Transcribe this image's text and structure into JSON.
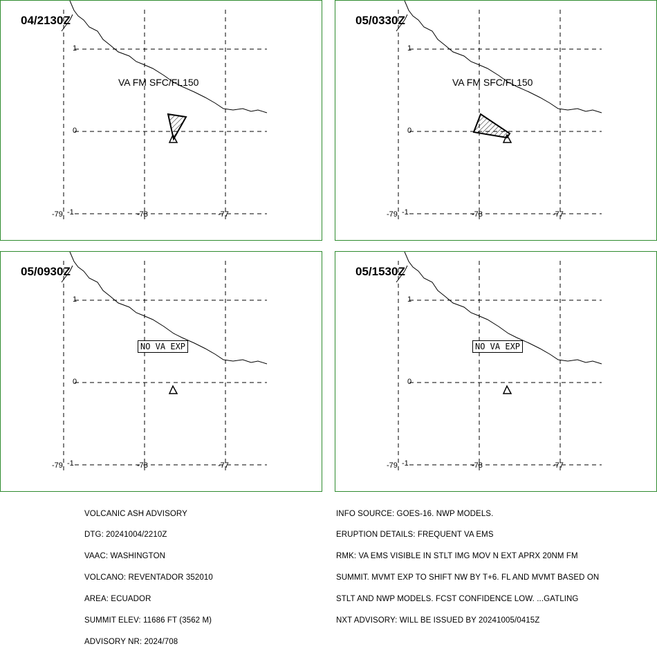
{
  "panels": [
    {
      "time": "04/2130Z",
      "label": "VA FM SFC/FL150",
      "no_va": ""
    },
    {
      "time": "05/0330Z",
      "label": "VA FM SFC/FL150",
      "no_va": ""
    },
    {
      "time": "05/0930Z",
      "label": "",
      "no_va": "NO VA EXP"
    },
    {
      "time": "05/1530Z",
      "label": "",
      "no_va": "NO VA EXP"
    }
  ],
  "ticks": {
    "lat_1": "1",
    "lat_0": "0",
    "lat_m1": "-1",
    "lon_79": "-79",
    "lon_78": "-78",
    "lon_77": "-77"
  },
  "advisory_left": [
    "VOLCANIC ASH ADVISORY",
    "DTG: 20241004/2210Z",
    "VAAC: WASHINGTON",
    "VOLCANO: REVENTADOR 352010",
    "AREA: ECUADOR",
    "SUMMIT ELEV: 11686 FT (3562 M)",
    "ADVISORY NR: 2024/708"
  ],
  "advisory_right": [
    "INFO SOURCE: GOES-16. NWP MODELS.",
    "ERUPTION DETAILS: FREQUENT VA EMS",
    "RMK: VA EMS VISIBLE IN STLT IMG MOV N EXT APRX 20NM FM",
    "SUMMIT. MVMT EXP TO SHIFT NW BY T+6. FL AND MVMT BASED ON",
    "STLT AND NWP MODELS. FCST CONFIDENCE LOW. ...GATLING",
    "NXT ADVISORY: WILL BE ISSUED BY 20241005/0415Z"
  ],
  "colors": {
    "border": "#2e8b2e",
    "lines": "#000000"
  },
  "icons": {
    "volcano": "volcano-triangle-icon"
  }
}
